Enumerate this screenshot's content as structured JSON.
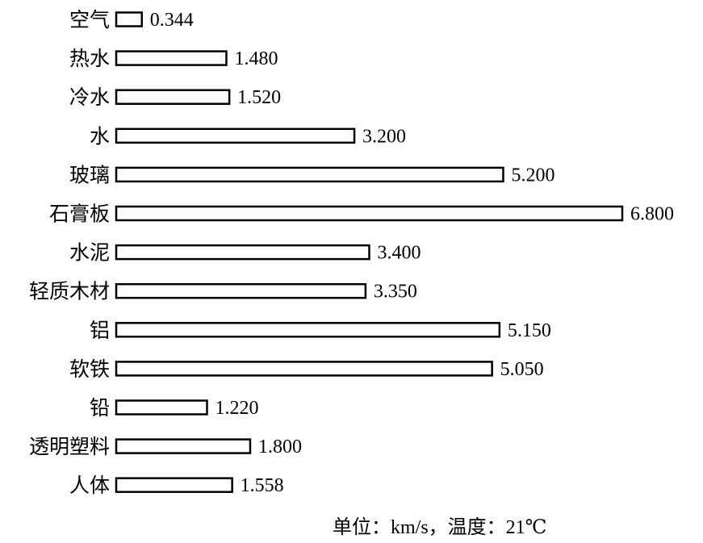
{
  "chart_data": {
    "type": "bar",
    "orientation": "horizontal",
    "categories": [
      "空气",
      "热水",
      "冷水",
      "水",
      "玻璃",
      "石膏板",
      "水泥",
      "轻质木材",
      "铝",
      "软铁",
      "铅",
      "透明塑料",
      "人体"
    ],
    "values": [
      0.344,
      1.48,
      1.52,
      3.2,
      5.2,
      6.8,
      3.4,
      3.35,
      5.15,
      5.05,
      1.22,
      1.8,
      1.558
    ],
    "value_labels": [
      "0.344",
      "1.480",
      "1.520",
      "3.200",
      "5.200",
      "6.800",
      "3.400",
      "3.350",
      "5.150",
      "5.050",
      "1.220",
      "1.800",
      "1.558"
    ],
    "title": "",
    "xlabel": "",
    "ylabel": "",
    "xlim": [
      0,
      6.8
    ],
    "grid": false,
    "bar_fill": "#ffffff",
    "bar_stroke": "#000000",
    "annotation": "单位：km/s，温度：21℃"
  }
}
